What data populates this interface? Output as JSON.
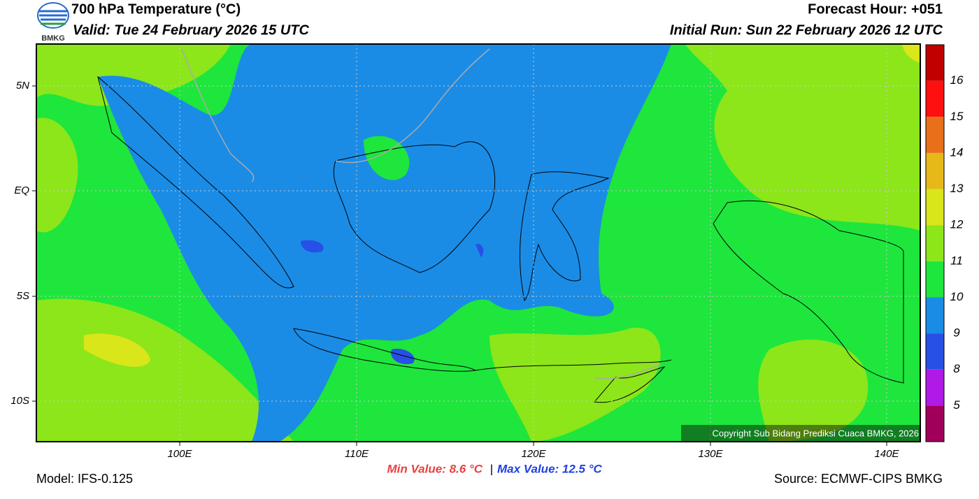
{
  "header": {
    "logo_text": "BMKG",
    "title": "700 hPa Temperature (°C)",
    "valid": "Valid: Tue 24 February 2026 15 UTC",
    "forecast_hour": "Forecast Hour: +051",
    "initial_run": "Initial Run: Sun 22 February 2026 12 UTC"
  },
  "map": {
    "lat_labels": [
      "5N",
      "EQ",
      "5S",
      "10S"
    ],
    "lon_labels": [
      "100E",
      "110E",
      "120E",
      "130E",
      "140E"
    ],
    "copyright": "Copyright Sub Bidang Prediksi Cuaca BMKG, 2026"
  },
  "colorbar": {
    "labels": [
      "16",
      "15",
      "14",
      "13",
      "12",
      "11",
      "10",
      "9",
      "8",
      "5"
    ],
    "colors": [
      "#c00000",
      "#ff1010",
      "#e8701a",
      "#e6b81a",
      "#d8e61a",
      "#8ce61a",
      "#1ee63c",
      "#1a8ce6",
      "#2850e6",
      "#b01ae6",
      "#a0005a"
    ]
  },
  "footer": {
    "model": "Model: IFS-0.125",
    "min_value": "Min Value: 8.6 °C",
    "separator": "|",
    "max_value": "Max Value: 12.5 °C",
    "source": "Source: ECMWF-CIPS BMKG"
  }
}
